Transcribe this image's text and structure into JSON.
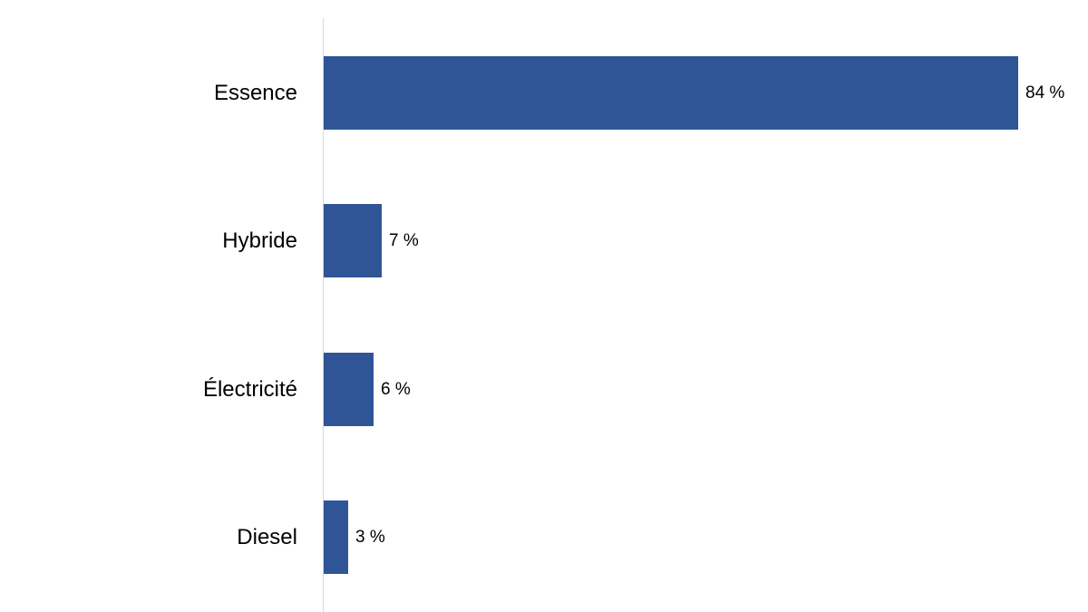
{
  "chart_data": {
    "type": "bar",
    "orientation": "horizontal",
    "title": "",
    "xlabel": "",
    "ylabel": "",
    "categories": [
      "Essence",
      "Hybride",
      "Électricité",
      "Diesel"
    ],
    "values": [
      84,
      7,
      6,
      3
    ],
    "value_labels": [
      "84 %",
      "7 %",
      "6 %",
      "3 %"
    ],
    "unit": "%",
    "xlim": [
      0,
      84
    ],
    "grid": false,
    "legend": null,
    "bar_color": "#2f5597"
  }
}
